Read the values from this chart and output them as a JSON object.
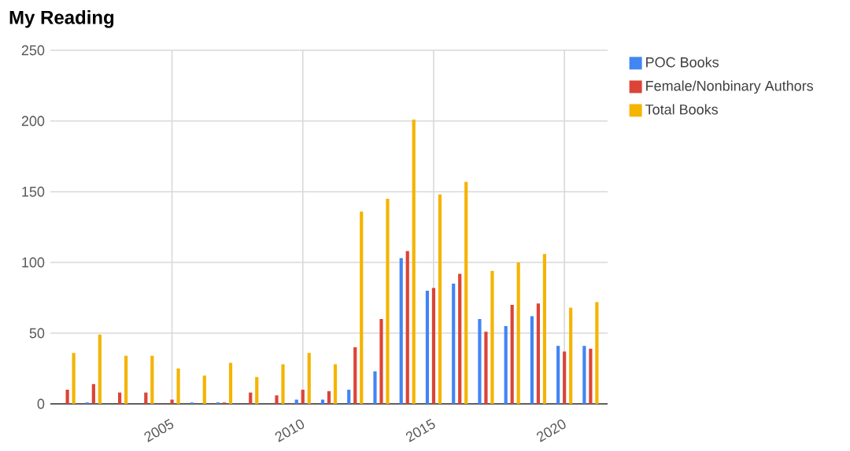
{
  "chart_data": {
    "type": "bar",
    "title": "My Reading",
    "x": [
      2001,
      2002,
      2003,
      2004,
      2005,
      2006,
      2007,
      2008,
      2009,
      2010,
      2011,
      2012,
      2013,
      2014,
      2015,
      2016,
      2017,
      2018,
      2019,
      2020,
      2021
    ],
    "series": [
      {
        "name": "POC Books",
        "color": "#4285f4",
        "values": [
          0,
          1,
          0,
          0,
          0,
          1,
          1,
          0,
          0,
          3,
          3,
          10,
          23,
          103,
          80,
          85,
          60,
          55,
          62,
          41,
          41
        ]
      },
      {
        "name": "Female/Nonbinary Authors",
        "color": "#db4437",
        "values": [
          10,
          14,
          8,
          8,
          3,
          0,
          1,
          8,
          6,
          10,
          9,
          40,
          60,
          108,
          82,
          92,
          51,
          70,
          71,
          37,
          39
        ]
      },
      {
        "name": "Total Books",
        "color": "#f4b400",
        "values": [
          36,
          49,
          34,
          34,
          25,
          20,
          29,
          19,
          28,
          36,
          28,
          136,
          145,
          201,
          148,
          157,
          94,
          100,
          106,
          68,
          72
        ]
      }
    ],
    "xlim": [
      2000.35,
      2021.65
    ],
    "xticks": [
      2005,
      2010,
      2015,
      2020
    ],
    "ylim": [
      0,
      250
    ],
    "yticks": [
      0,
      50,
      100,
      150,
      200,
      250
    ],
    "grid": true,
    "legend": "top right"
  }
}
